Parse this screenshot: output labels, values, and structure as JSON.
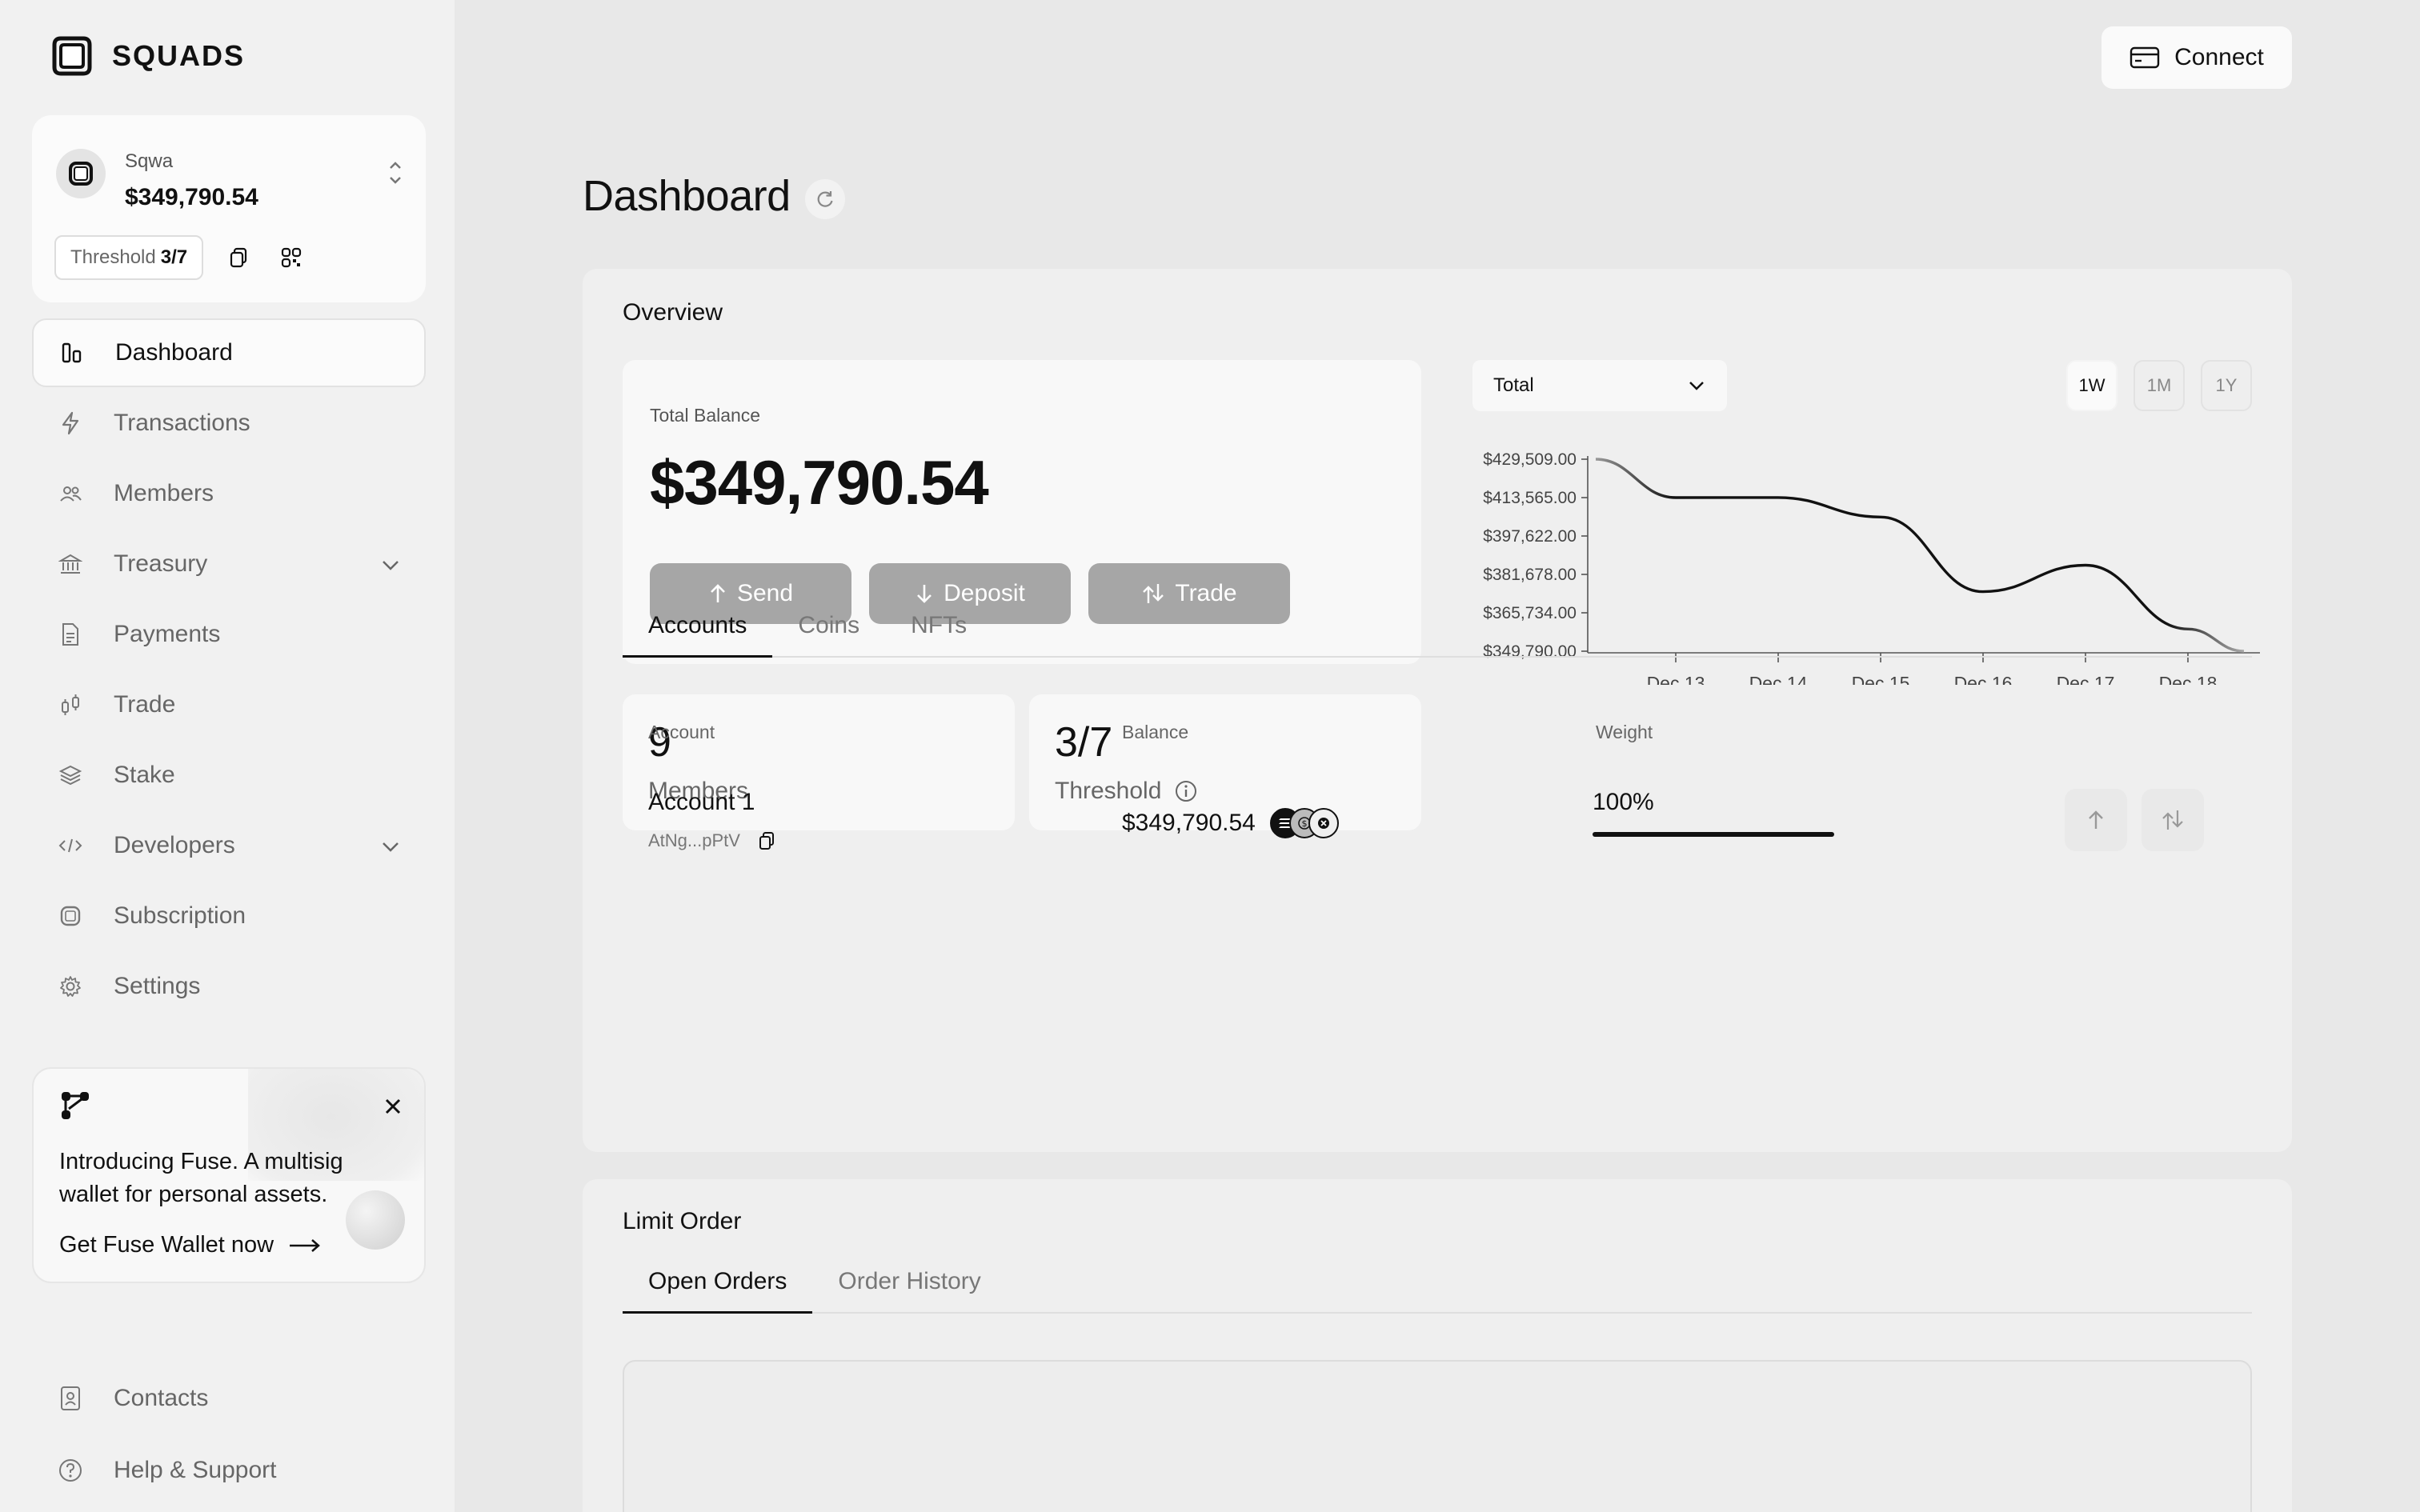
{
  "brand": {
    "name": "SQUADS"
  },
  "wallet": {
    "name": "Sqwa",
    "balance": "$349,790.54",
    "threshold_label": "Threshold",
    "threshold_value": "3/7"
  },
  "nav": {
    "items": [
      {
        "label": "Dashboard",
        "icon": "dashboard-icon",
        "active": true
      },
      {
        "label": "Transactions",
        "icon": "lightning-icon"
      },
      {
        "label": "Members",
        "icon": "members-icon"
      },
      {
        "label": "Treasury",
        "icon": "bank-icon",
        "expandable": true
      },
      {
        "label": "Payments",
        "icon": "document-icon"
      },
      {
        "label": "Trade",
        "icon": "candlestick-icon"
      },
      {
        "label": "Stake",
        "icon": "layers-icon"
      },
      {
        "label": "Developers",
        "icon": "code-icon",
        "expandable": true
      },
      {
        "label": "Subscription",
        "icon": "squads-icon"
      },
      {
        "label": "Settings",
        "icon": "gear-icon"
      }
    ],
    "bottom": [
      {
        "label": "Contacts",
        "icon": "contacts-icon"
      },
      {
        "label": "Help & Support",
        "icon": "help-icon"
      }
    ]
  },
  "promo": {
    "text": "Introducing Fuse. A multisig wallet for personal assets.",
    "link": "Get Fuse Wallet now"
  },
  "header": {
    "connect_label": "Connect"
  },
  "page": {
    "title": "Dashboard"
  },
  "overview": {
    "title": "Overview",
    "total_balance_label": "Total Balance",
    "total_balance": "$349,790.54",
    "actions": {
      "send": "Send",
      "deposit": "Deposit",
      "trade": "Trade"
    },
    "members_count": "9",
    "members_label": "Members",
    "threshold_value": "3/7",
    "threshold_label": "Threshold",
    "chart_select": "Total",
    "ranges": [
      "1W",
      "1M",
      "1Y"
    ],
    "active_range": "1W"
  },
  "chart_data": {
    "type": "line",
    "x": [
      "Dec 12",
      "Dec 13",
      "Dec 14",
      "Dec 15",
      "Dec 16",
      "Dec 17",
      "Dec 18",
      "Dec 18.5"
    ],
    "series": [
      {
        "values": [
          429509.0,
          413565.0,
          413600.0,
          405500.0,
          374500.0,
          385500.0,
          359000.0,
          349790.0
        ]
      }
    ],
    "tick_labels_x": [
      "Dec 13",
      "Dec 14",
      "Dec 15",
      "Dec 16",
      "Dec 17",
      "Dec 18"
    ],
    "tick_labels_y": [
      "$429,509.00",
      "$413,565.00",
      "$397,622.00",
      "$381,678.00",
      "$365,734.00",
      "$349,790.00"
    ],
    "ylim": [
      349790.0,
      429509.0
    ],
    "grid": false
  },
  "tabs": {
    "items": [
      "Accounts",
      "Coins",
      "NFTs"
    ],
    "active": "Accounts"
  },
  "accounts_table": {
    "headers": {
      "account": "Account",
      "balance": "Balance",
      "weight": "Weight"
    },
    "rows": [
      {
        "name": "Account 1",
        "address": "AtNg...pPtV",
        "balance": "$349,790.54",
        "weight": "100%",
        "weight_fraction": 1.0
      }
    ]
  },
  "limit_order": {
    "title": "Limit Order",
    "tabs": [
      "Open Orders",
      "Order History"
    ],
    "active": "Open Orders"
  }
}
